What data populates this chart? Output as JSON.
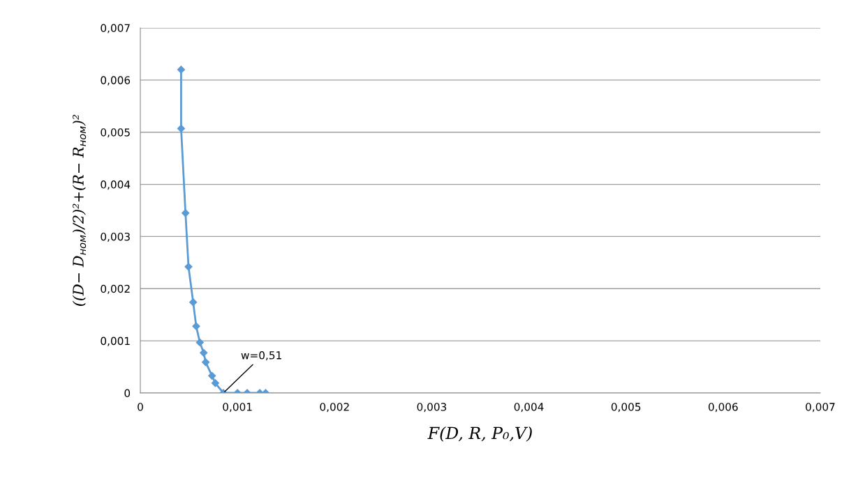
{
  "chart_data": {
    "type": "line",
    "xlabel": "F(D, R, P₀,V)",
    "ylabel": "((D− D$_{ном}$)/2)²+(R− R$_{ном}$)²",
    "x": [
      0.00042,
      0.00042,
      0.000465,
      0.000496,
      0.000544,
      0.000575,
      0.000613,
      0.000652,
      0.000673,
      0.000738,
      0.000772,
      0.000855,
      0.001,
      0.0011,
      0.00123,
      0.00129
    ],
    "series": [
      {
        "color": "#5b9bd5",
        "values": [
          0.0062,
          0.00507,
          0.00345,
          0.00242,
          0.00174,
          0.00128,
          0.00097,
          0.00077,
          0.00059,
          0.00033,
          0.00019,
          0,
          0,
          0,
          0,
          0
        ]
      }
    ],
    "marker": "diamond",
    "line_style": "solid",
    "grid": "y",
    "xlim": [
      0,
      0.007
    ],
    "ylim": [
      0,
      0.007
    ],
    "xticks": [
      0,
      {
        "value": 0.001,
        "label": "0,001"
      },
      {
        "value": 0.002,
        "label": "0,002"
      },
      {
        "value": 0.003,
        "label": "0,003"
      },
      {
        "value": 0.004,
        "label": "0,004"
      },
      {
        "value": 0.005,
        "label": "0,005"
      },
      {
        "value": 0.006,
        "label": "0,006"
      },
      {
        "value": 0.007,
        "label": "0,007"
      }
    ],
    "yticks": [
      0,
      {
        "value": 0.001,
        "label": "0,001"
      },
      {
        "value": 0.002,
        "label": "0,002"
      },
      {
        "value": 0.003,
        "label": "0,003"
      },
      {
        "value": 0.004,
        "label": "0,004"
      },
      {
        "value": 0.005,
        "label": "0,005"
      },
      {
        "value": 0.006,
        "label": "0,006"
      },
      {
        "value": 0.007,
        "label": "0,007"
      }
    ],
    "annotations": [
      {
        "text": "w=0,51",
        "x": 0.000855,
        "y": 0
      }
    ]
  }
}
